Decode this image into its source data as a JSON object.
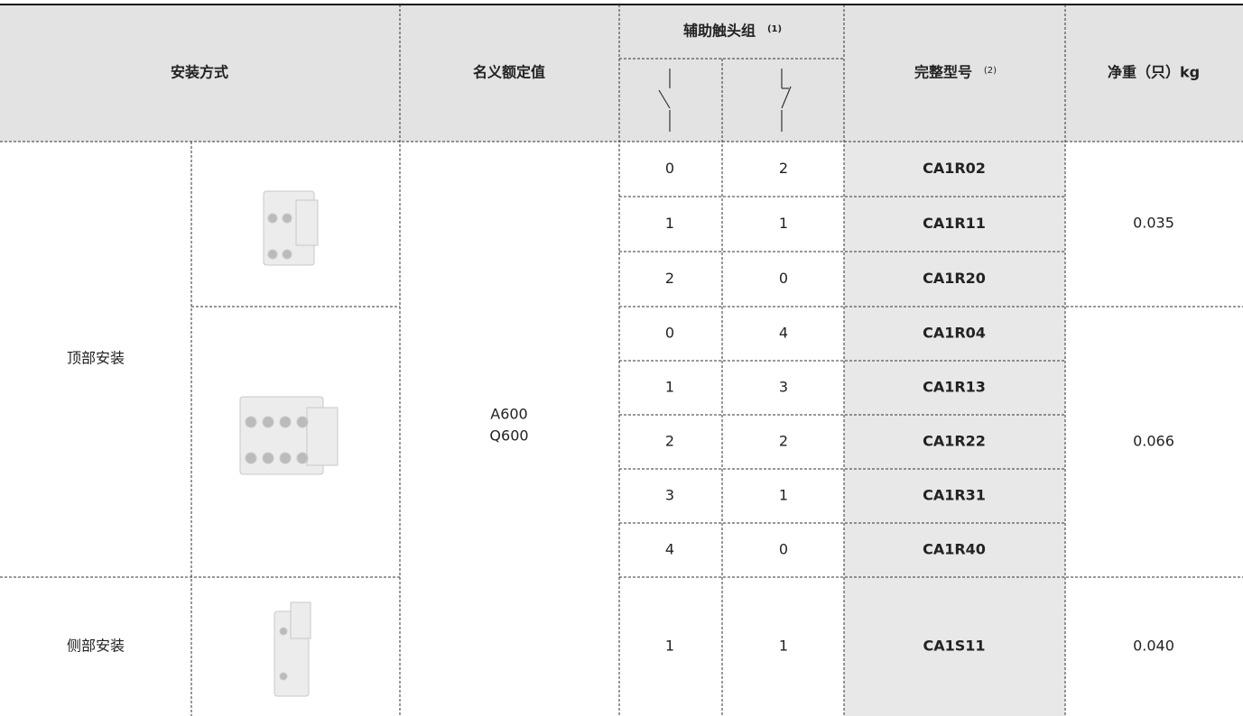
{
  "table": {
    "header": {
      "mount": "安装方式",
      "rating": "名义额定值",
      "aux": "辅助触头组",
      "aux_note": "(1)",
      "model": "完整型号",
      "model_note": "(2)",
      "weight": "净重（只）kg"
    },
    "mount_types": [
      "顶部安装",
      "侧部安装"
    ],
    "rating": [
      "A600",
      "Q600"
    ],
    "rows": [
      [
        "0",
        "2",
        "CA1R02"
      ],
      [
        "1",
        "1",
        "CA1R11"
      ],
      [
        "2",
        "0",
        "CA1R20"
      ],
      [
        "0",
        "4",
        "CA1R04"
      ],
      [
        "1",
        "3",
        "CA1R13"
      ],
      [
        "2",
        "2",
        "CA1R22"
      ],
      [
        "3",
        "1",
        "CA1R31"
      ],
      [
        "4",
        "0",
        "CA1R40"
      ],
      [
        "1",
        "1",
        "CA1S11"
      ]
    ],
    "weights": [
      "0.035",
      "0.066",
      "0.040"
    ]
  }
}
